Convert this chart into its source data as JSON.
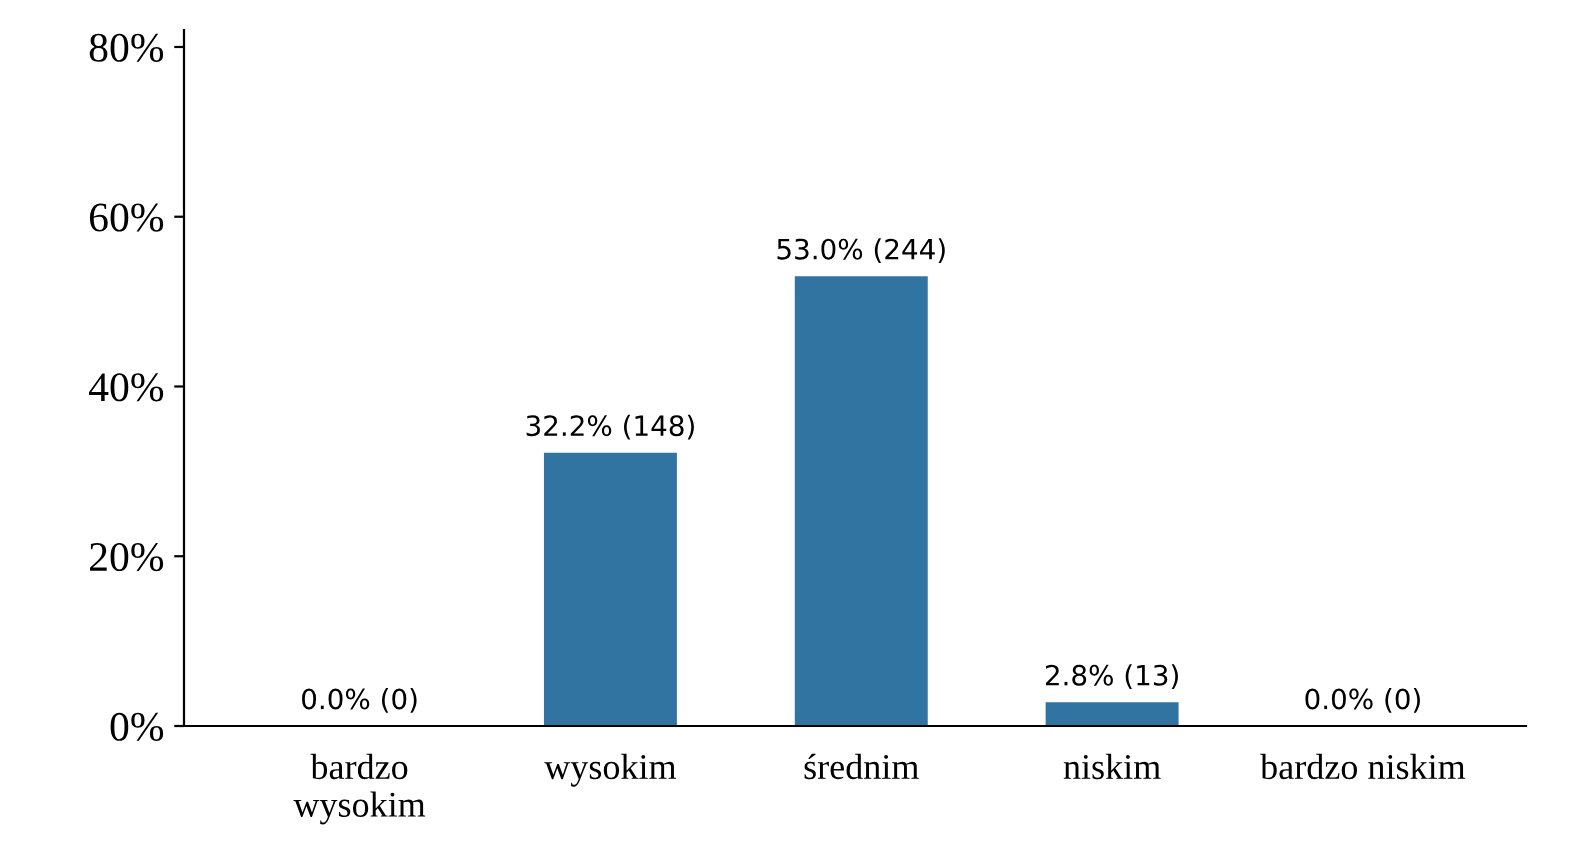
{
  "chart_data": {
    "type": "bar",
    "categories": [
      "bardzo\nwysokim",
      "wysokim",
      "średnim",
      "niskim",
      "bardzo niskim"
    ],
    "values": [
      0.0,
      32.2,
      53.0,
      2.8,
      0.0
    ],
    "value_labels": [
      "0.0% (0)",
      "32.2% (148)",
      "53.0% (244)",
      "2.8% (13)",
      "0.0% (0)"
    ],
    "color": "#3274a1",
    "ylim": [
      0,
      82
    ],
    "yticks": [
      {
        "value": 0,
        "label": "0%"
      },
      {
        "value": 20,
        "label": "20%"
      },
      {
        "value": 40,
        "label": "40%"
      },
      {
        "value": 60,
        "label": "60%"
      },
      {
        "value": 80,
        "label": "80%"
      }
    ],
    "grid": false,
    "legend": false
  }
}
